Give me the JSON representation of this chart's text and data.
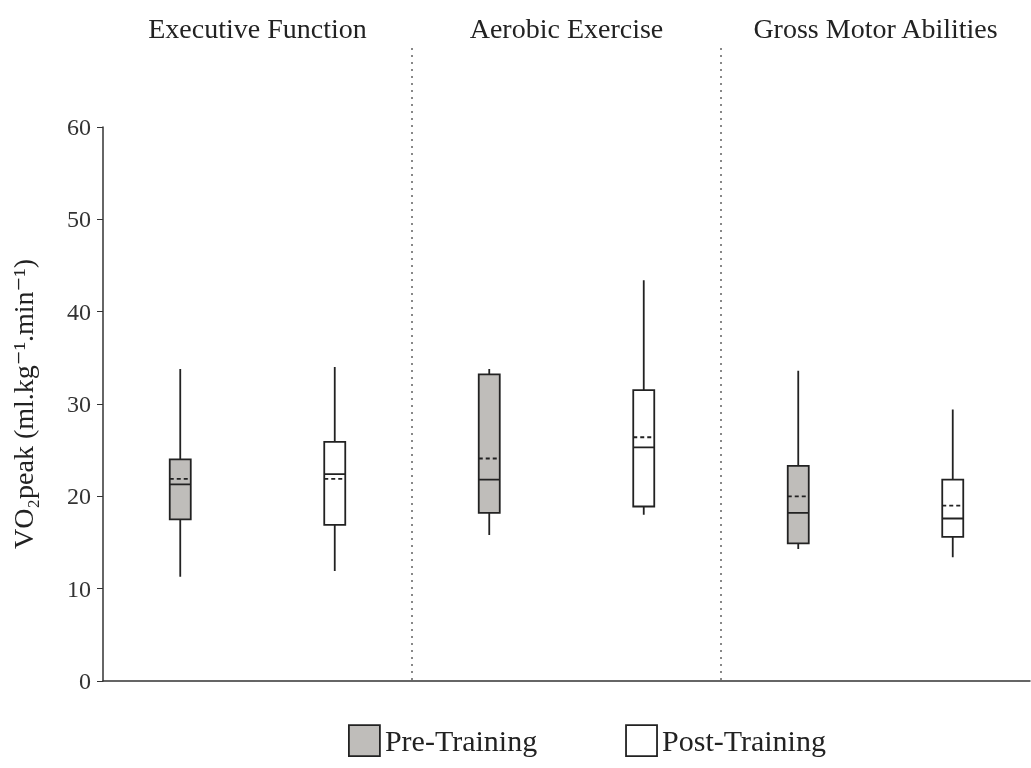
{
  "chart_data": {
    "type": "box",
    "categories": [
      "Executive Function",
      "Aerobic Exercise",
      "Gross Motor Abilities"
    ],
    "ylabel": "VO₂peak (ml.kg⁻¹.min⁻¹)",
    "ylim": [
      0,
      60
    ],
    "yticks": [
      0,
      10,
      20,
      30,
      40,
      50,
      60
    ],
    "grid": "x",
    "legend": "bottom",
    "series": [
      {
        "name": "Pre-Training",
        "color": "#bfbdba",
        "boxes": [
          {
            "low": 11.3,
            "q1": 17.5,
            "median": 21.3,
            "q3": 24.0,
            "high": 33.8,
            "mean": 21.9
          },
          {
            "low": 15.8,
            "q1": 18.2,
            "median": 21.8,
            "q3": 33.2,
            "high": 33.8,
            "mean": 24.1
          },
          {
            "low": 14.3,
            "q1": 14.9,
            "median": 18.2,
            "q3": 23.3,
            "high": 33.6,
            "mean": 20.0
          }
        ]
      },
      {
        "name": "Post-Training",
        "color": "#ffffff",
        "boxes": [
          {
            "low": 11.9,
            "q1": 16.9,
            "median": 22.4,
            "q3": 25.9,
            "high": 34.0,
            "mean": 21.9
          },
          {
            "low": 18.0,
            "q1": 18.9,
            "median": 25.3,
            "q3": 31.5,
            "high": 43.4,
            "mean": 26.4
          },
          {
            "low": 13.4,
            "q1": 15.6,
            "median": 17.6,
            "q3": 21.8,
            "high": 29.4,
            "mean": 19.0
          }
        ]
      }
    ]
  }
}
